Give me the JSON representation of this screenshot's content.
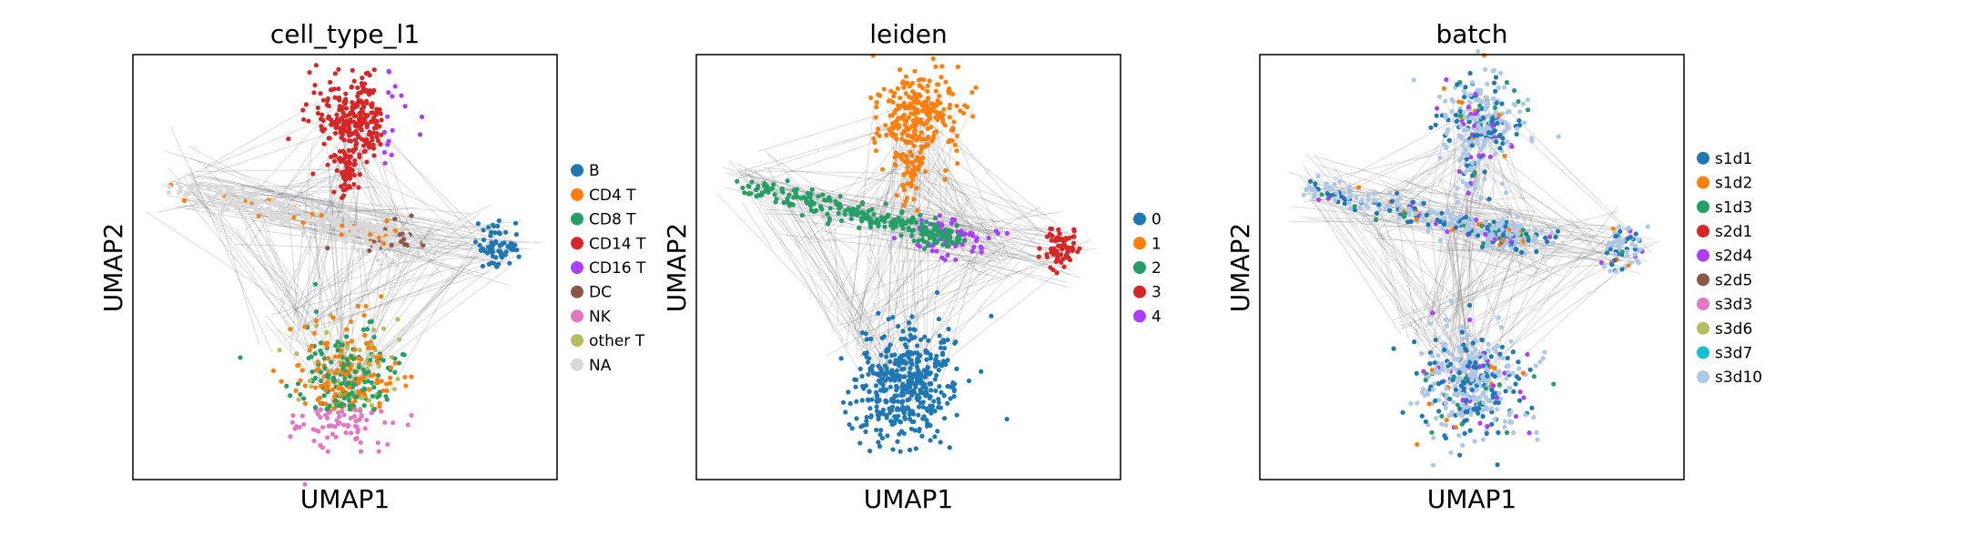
{
  "chart_data": [
    {
      "type": "scatter",
      "title": "cell_type_l1",
      "xlabel": "UMAP1",
      "ylabel": "UMAP2",
      "grid": false,
      "ticks": false,
      "legend_placement": "right",
      "legend": [
        {
          "label": "B",
          "color": "#1f77b4"
        },
        {
          "label": "CD4 T",
          "color": "#ff7f0e"
        },
        {
          "label": "CD8 T",
          "color": "#279e68"
        },
        {
          "label": "CD14 T",
          "color": "#d62728"
        },
        {
          "label": "CD16 T",
          "color": "#aa40fc"
        },
        {
          "label": "DC",
          "color": "#8c564b"
        },
        {
          "label": "NK",
          "color": "#e377c2"
        },
        {
          "label": "other T",
          "color": "#b5bd61"
        },
        {
          "label": "NA",
          "color": "#d9d9d9"
        }
      ]
    },
    {
      "type": "scatter",
      "title": "leiden",
      "xlabel": "UMAP1",
      "ylabel": "UMAP2",
      "grid": false,
      "ticks": false,
      "legend_placement": "right",
      "legend": [
        {
          "label": "0",
          "color": "#1f77b4"
        },
        {
          "label": "1",
          "color": "#ff7f0e"
        },
        {
          "label": "2",
          "color": "#279e68"
        },
        {
          "label": "3",
          "color": "#d62728"
        },
        {
          "label": "4",
          "color": "#aa40fc"
        }
      ]
    },
    {
      "type": "scatter",
      "title": "batch",
      "xlabel": "UMAP1",
      "ylabel": "UMAP2",
      "grid": false,
      "ticks": false,
      "legend_placement": "right",
      "legend": [
        {
          "label": "s1d1",
          "color": "#1f77b4"
        },
        {
          "label": "s1d2",
          "color": "#ff7f0e"
        },
        {
          "label": "s1d3",
          "color": "#279e68"
        },
        {
          "label": "s2d1",
          "color": "#d62728"
        },
        {
          "label": "s2d4",
          "color": "#aa40fc"
        },
        {
          "label": "s2d5",
          "color": "#8c564b"
        },
        {
          "label": "s3d3",
          "color": "#e377c2"
        },
        {
          "label": "s3d6",
          "color": "#b5bd61"
        },
        {
          "label": "s3d7",
          "color": "#17becf"
        },
        {
          "label": "s3d10",
          "color": "#aec7e8"
        }
      ]
    }
  ]
}
